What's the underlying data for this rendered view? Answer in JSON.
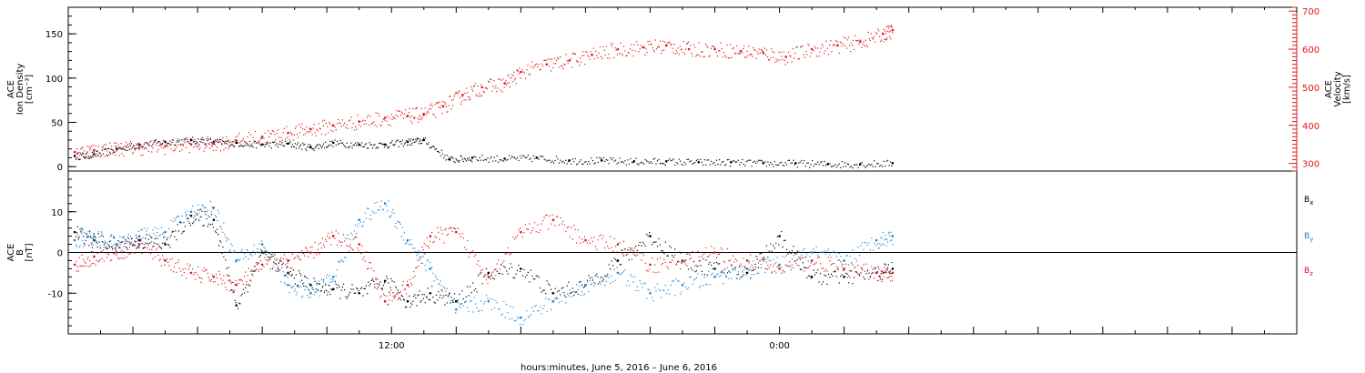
{
  "chart_data": [
    {
      "type": "scatter",
      "panel": "top",
      "left_axis": {
        "label_lines": [
          "ACE",
          "Ion Density",
          "[cm⁻³]"
        ],
        "ylim": [
          -5,
          180
        ],
        "ticks": [
          0,
          50,
          100,
          150
        ],
        "tick_labels": [
          "0",
          "50",
          "100",
          "150"
        ]
      },
      "right_axis": {
        "label_lines": [
          "ACE",
          "Velocity",
          "[km/s]"
        ],
        "ylim": [
          280,
          710
        ],
        "ticks": [
          300,
          400,
          500,
          600,
          700
        ],
        "tick_labels": [
          "300",
          "400",
          "500",
          "600",
          "700"
        ],
        "color": "#e0141e"
      },
      "series": [
        {
          "axis": "left",
          "color": "#000000",
          "x": [
            2.2,
            2.8,
            3.5,
            4.2,
            5.0,
            5.8,
            6.5,
            7.2,
            8.0,
            8.8,
            9.5,
            10.2,
            11.0,
            11.8,
            12.5,
            13.0,
            13.8,
            14.5,
            15.5,
            16.5,
            17.5,
            18.5,
            19.5,
            20.5,
            21.5,
            22.5,
            23.5,
            24.5,
            25.5,
            26.5,
            27.5
          ],
          "values": [
            12,
            14,
            20,
            25,
            28,
            30,
            28,
            27,
            25,
            26,
            22,
            27,
            25,
            25,
            28,
            30,
            8,
            10,
            9,
            10,
            7,
            7,
            6,
            6,
            5,
            5,
            4,
            4,
            3,
            3,
            4
          ]
        },
        {
          "axis": "right",
          "color": "#e0141e",
          "x": [
            2.2,
            2.8,
            3.5,
            4.2,
            5.0,
            5.8,
            6.5,
            7.2,
            8.0,
            8.8,
            9.5,
            10.2,
            11.0,
            11.8,
            12.5,
            13.0,
            13.6,
            14.2,
            14.8,
            15.5,
            16.0,
            16.8,
            17.5,
            18.2,
            19.0,
            19.8,
            20.5,
            21.2,
            22.0,
            22.8,
            23.5,
            24.2,
            25.0,
            25.8,
            26.5,
            27.2,
            27.5
          ],
          "values": [
            330,
            335,
            340,
            342,
            345,
            350,
            352,
            360,
            370,
            380,
            390,
            400,
            410,
            420,
            425,
            430,
            450,
            480,
            500,
            510,
            540,
            560,
            570,
            585,
            600,
            605,
            610,
            600,
            600,
            595,
            590,
            580,
            600,
            610,
            620,
            640,
            650
          ]
        }
      ],
      "xlim": [
        2.0,
        40.0
      ]
    },
    {
      "type": "scatter",
      "panel": "bottom",
      "left_axis": {
        "label_lines": [
          "ACE",
          "B",
          "[nT]"
        ],
        "ylim": [
          -20,
          20
        ],
        "ticks": [
          -10,
          0,
          10
        ],
        "tick_labels": [
          "-10",
          "0",
          "10"
        ]
      },
      "series": [
        {
          "name": "Bx",
          "color": "#000000",
          "x": [
            2.2,
            2.8,
            3.5,
            4.2,
            5.0,
            5.8,
            6.5,
            7.2,
            8.0,
            8.8,
            9.5,
            10.2,
            11.0,
            11.8,
            12.5,
            13.2,
            14.0,
            15.0,
            16.0,
            17.0,
            18.0,
            19.0,
            20.0,
            21.0,
            22.0,
            23.0,
            24.0,
            25.0,
            26.0,
            27.0,
            27.5
          ],
          "values": [
            5,
            3,
            2,
            3,
            2,
            9,
            8,
            -13,
            0,
            -5,
            -8,
            -9,
            -10,
            -7,
            -12,
            -10,
            -12,
            -5,
            -4,
            -10,
            -8,
            -2,
            4,
            -2,
            -4,
            -5,
            4,
            -6,
            -6,
            -5,
            -4
          ]
        },
        {
          "name": "By",
          "color": "#1f87d6",
          "x": [
            2.2,
            2.8,
            3.5,
            4.2,
            5.0,
            5.8,
            6.5,
            7.2,
            8.0,
            8.8,
            9.5,
            10.2,
            11.0,
            11.8,
            12.5,
            13.2,
            14.0,
            15.0,
            16.0,
            17.0,
            18.0,
            19.0,
            20.0,
            21.0,
            22.0,
            23.0,
            24.0,
            25.0,
            26.0,
            27.0,
            27.5
          ],
          "values": [
            3,
            4,
            2,
            4,
            5,
            10,
            11,
            -2,
            2,
            -8,
            -10,
            -6,
            8,
            12,
            3,
            -4,
            -14,
            -12,
            -16,
            -12,
            -8,
            -5,
            -10,
            -8,
            -6,
            -4,
            -3,
            0,
            -2,
            3,
            4
          ]
        },
        {
          "name": "Bz",
          "color": "#e0141e",
          "x": [
            2.2,
            2.8,
            3.5,
            4.2,
            5.0,
            5.8,
            6.5,
            7.2,
            8.0,
            8.8,
            9.5,
            10.2,
            11.0,
            11.8,
            12.5,
            13.2,
            14.0,
            15.0,
            16.0,
            17.0,
            18.0,
            19.0,
            20.0,
            21.0,
            22.0,
            23.0,
            24.0,
            25.0,
            26.0,
            27.0,
            27.5
          ],
          "values": [
            -3,
            -1,
            0,
            2,
            -2,
            -5,
            -6,
            -8,
            -3,
            -2,
            0,
            4,
            2,
            -12,
            -8,
            4,
            5,
            -6,
            5,
            8,
            3,
            2,
            -3,
            -2,
            0,
            -2,
            -4,
            -2,
            -4,
            -5,
            -5
          ]
        }
      ],
      "legend": [
        "Bx",
        "By",
        "Bz"
      ],
      "legend_placement": "right",
      "zero_line": true,
      "xlim": [
        2.0,
        40.0
      ]
    }
  ],
  "x_axis": {
    "tick_labels": [
      "12:00",
      "0:00"
    ],
    "tick_label_positions_hours": [
      12,
      24
    ],
    "title": "hours:minutes, June  5, 2016 – June  6, 2016"
  },
  "colors": {
    "density": "#000000",
    "velocity": "#e0141e",
    "bx": "#000000",
    "by": "#1f87d6",
    "bz": "#e0141e"
  }
}
